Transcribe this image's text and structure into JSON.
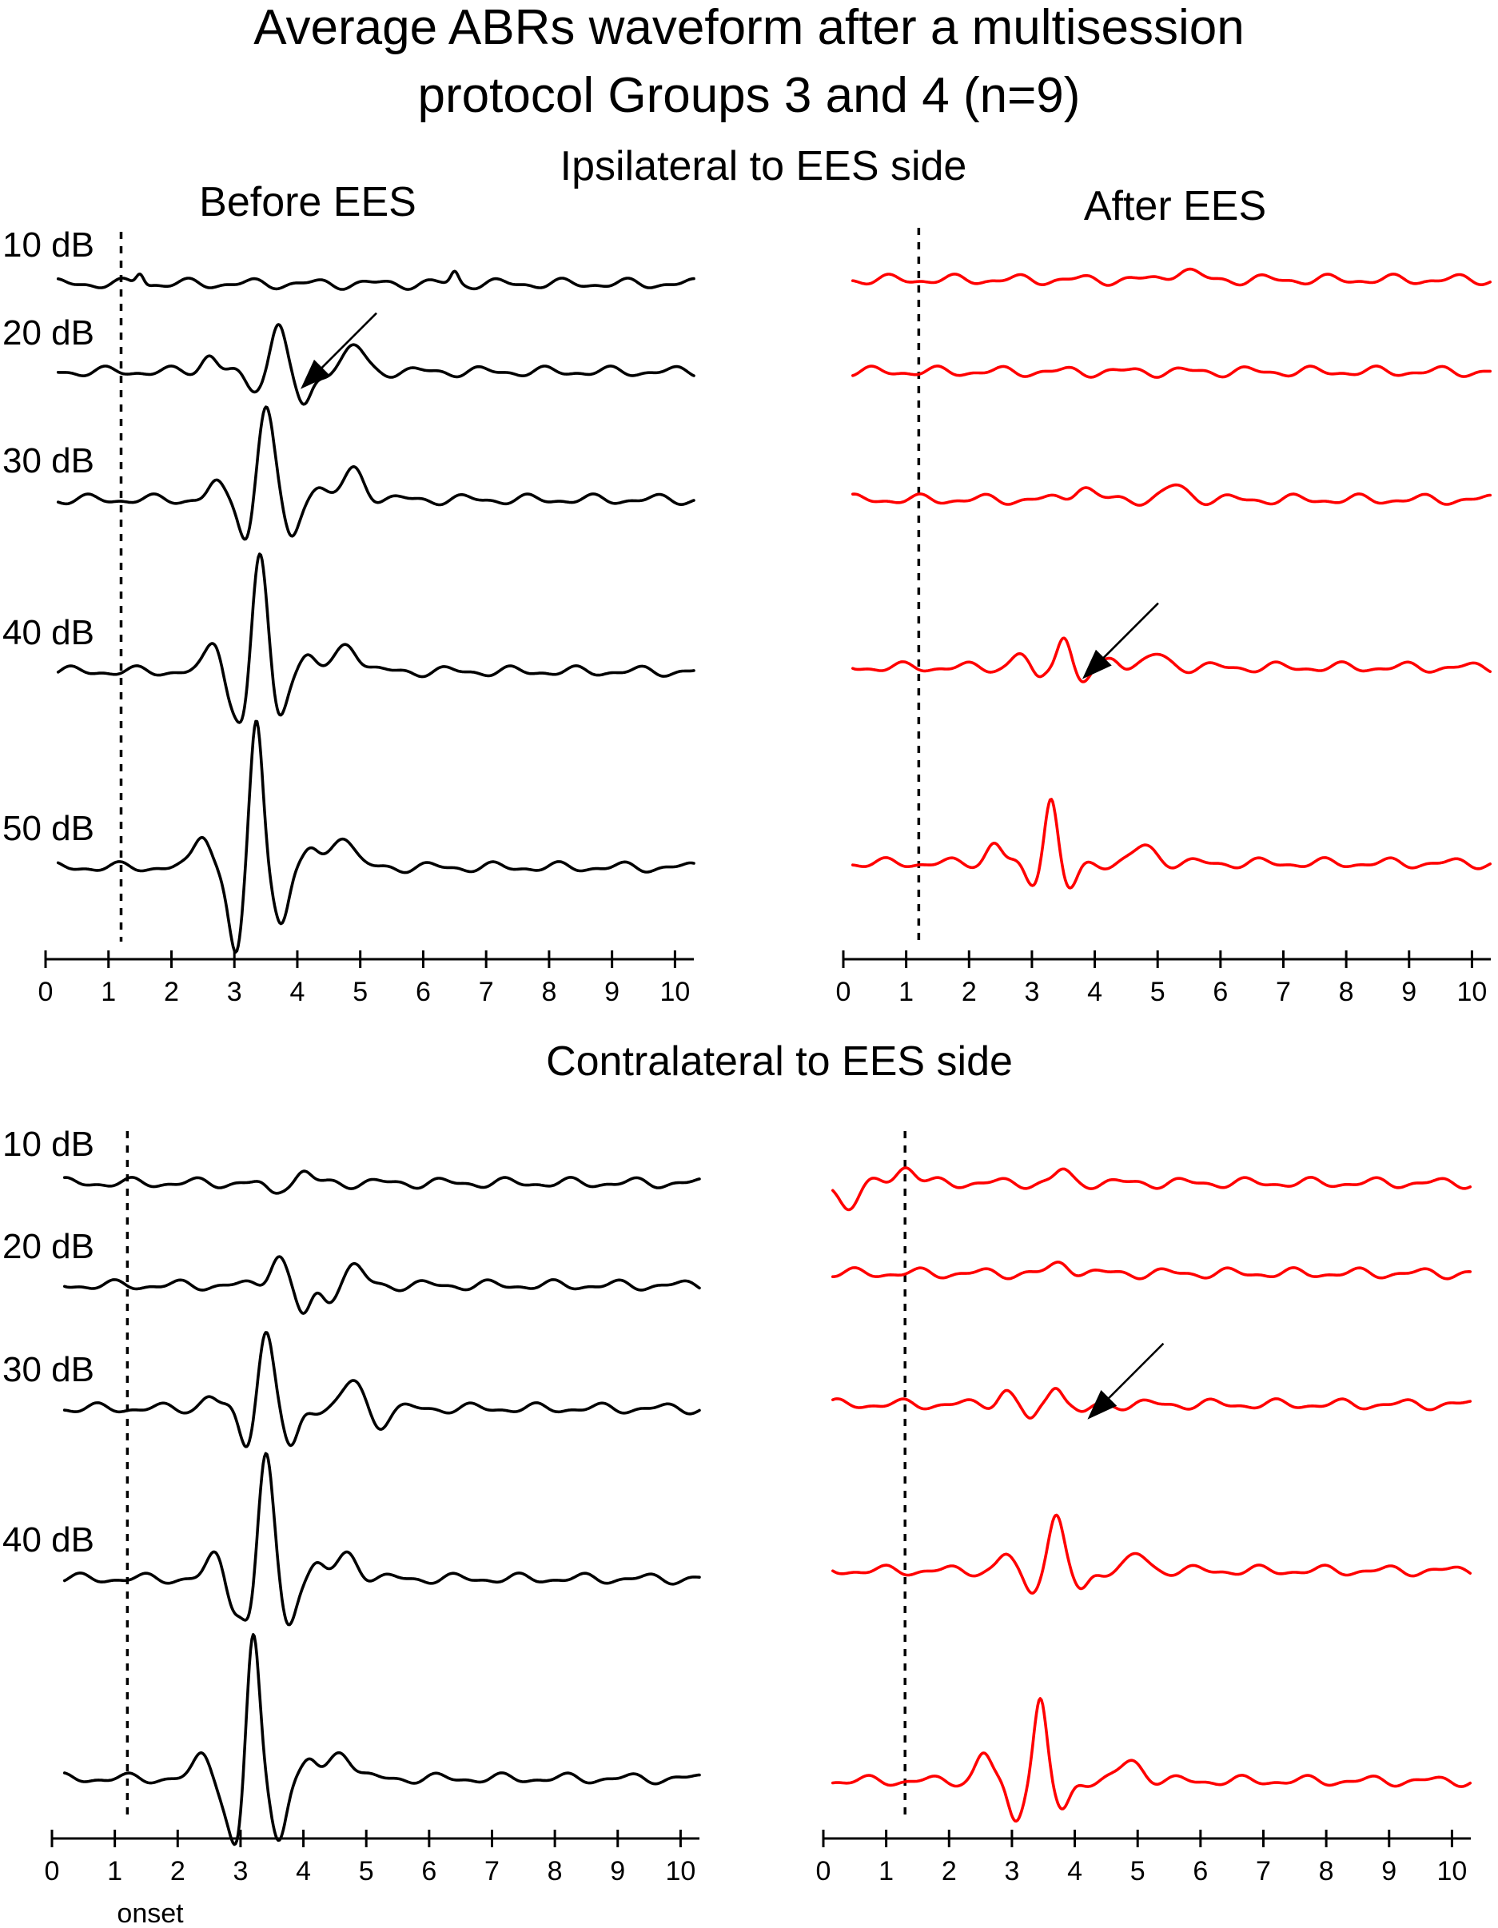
{
  "title_lines": [
    "Average ABRs waveform after a multisession",
    "protocol Groups 3 and 4 (n=9)"
  ],
  "colors": {
    "before": "#000000",
    "after": "#ff0000"
  },
  "chart_data": [
    {
      "type": "line",
      "section": "Ipsilateral to EES side",
      "panel": "Before EES",
      "xlim": [
        0,
        10.3
      ],
      "xticks": [
        0,
        1,
        2,
        3,
        4,
        5,
        6,
        7,
        8,
        9,
        10
      ],
      "onset_x": 1.2,
      "color": "#000000",
      "series": [
        {
          "level": "10 dB",
          "components": [
            [
              0.35,
              1.5,
              0.06
            ],
            [
              0.35,
              6.5,
              0.06
            ]
          ]
        },
        {
          "level": "20 dB",
          "components": [
            [
              0.5,
              2.6,
              0.12
            ],
            [
              1.4,
              3.7,
              0.12
            ],
            [
              -1.1,
              4.1,
              0.12
            ],
            [
              0.75,
              4.9,
              0.16
            ],
            [
              -0.5,
              3.3,
              0.14
            ]
          ],
          "arrow_x": 3.95
        },
        {
          "level": "30 dB",
          "components": [
            [
              0.45,
              2.7,
              0.12
            ],
            [
              2.8,
              3.5,
              0.13
            ],
            [
              -1.2,
              3.2,
              0.12
            ],
            [
              -1.2,
              3.9,
              0.12
            ],
            [
              0.4,
              4.3,
              0.13
            ],
            [
              0.9,
              4.9,
              0.16
            ]
          ]
        },
        {
          "level": "40 dB",
          "components": [
            [
              0.9,
              2.7,
              0.14
            ],
            [
              -0.9,
              2.95,
              0.12
            ],
            [
              3.6,
              3.4,
              0.12
            ],
            [
              -1.4,
              3.15,
              0.11
            ],
            [
              -1.4,
              3.7,
              0.12
            ],
            [
              0.45,
              4.15,
              0.13
            ],
            [
              0.85,
              4.8,
              0.17
            ]
          ]
        },
        {
          "level": "50 dB",
          "components": [
            [
              1.0,
              2.5,
              0.13
            ],
            [
              -1.0,
              2.95,
              0.12
            ],
            [
              4.3,
              3.35,
              0.1
            ],
            [
              -1.8,
              3.05,
              0.1
            ],
            [
              -1.6,
              3.75,
              0.12
            ],
            [
              0.5,
              4.2,
              0.12
            ],
            [
              1.0,
              4.7,
              0.17
            ]
          ]
        }
      ]
    },
    {
      "type": "line",
      "section": "Ipsilateral to EES side",
      "panel": "After EES",
      "xlim": [
        0,
        10.3
      ],
      "xticks": [
        0,
        1,
        2,
        3,
        4,
        5,
        6,
        7,
        8,
        9,
        10
      ],
      "onset_x": 1.2,
      "color": "#ff0000",
      "series": [
        {
          "level": "10 dB",
          "components": [
            [
              0.3,
              5.4,
              0.18
            ]
          ]
        },
        {
          "level": "20 dB",
          "components": []
        },
        {
          "level": "30 dB",
          "components": [
            [
              0.4,
              3.8,
              0.15
            ],
            [
              0.4,
              5.3,
              0.17
            ]
          ]
        },
        {
          "level": "40 dB",
          "components": [
            [
              0.4,
              2.8,
              0.12
            ],
            [
              -0.4,
              3.1,
              0.1
            ],
            [
              1.0,
              3.5,
              0.11
            ],
            [
              -0.5,
              3.8,
              0.12
            ],
            [
              0.3,
              4.3,
              0.13
            ],
            [
              0.35,
              5.0,
              0.17
            ]
          ],
          "arrow_x": 3.7
        },
        {
          "level": "50 dB",
          "components": [
            [
              0.6,
              2.4,
              0.12
            ],
            [
              -0.6,
              3.0,
              0.12
            ],
            [
              2.0,
              3.3,
              0.1
            ],
            [
              -0.8,
              3.6,
              0.12
            ],
            [
              0.5,
              4.8,
              0.17
            ]
          ]
        }
      ]
    },
    {
      "type": "line",
      "section": "Contralateral to EES side",
      "panel": "Before EES",
      "xlim": [
        0,
        10.3
      ],
      "xticks": [
        0,
        1,
        2,
        3,
        4,
        5,
        6,
        7,
        8,
        9,
        10
      ],
      "onset_x": 1.2,
      "onset_label": "onset",
      "color": "#000000",
      "series": [
        {
          "level": "10 dB",
          "components": [
            [
              0.3,
              4.0,
              0.12
            ],
            [
              -0.3,
              3.5,
              0.12
            ]
          ]
        },
        {
          "level": "20 dB",
          "components": [
            [
              0.9,
              3.6,
              0.13
            ],
            [
              -0.9,
              4.0,
              0.12
            ],
            [
              0.55,
              4.8,
              0.15
            ],
            [
              -0.4,
              4.4,
              0.12
            ]
          ]
        },
        {
          "level": "30 dB",
          "components": [
            [
              0.35,
              2.5,
              0.12
            ],
            [
              2.3,
              3.4,
              0.12
            ],
            [
              -1.1,
              3.1,
              0.12
            ],
            [
              -1.2,
              3.8,
              0.12
            ],
            [
              0.8,
              4.8,
              0.16
            ],
            [
              -0.5,
              5.2,
              0.14
            ]
          ]
        },
        {
          "level": "40 dB",
          "components": [
            [
              0.7,
              2.6,
              0.13
            ],
            [
              -0.8,
              2.9,
              0.12
            ],
            [
              3.8,
              3.4,
              0.12
            ],
            [
              -1.3,
              3.15,
              0.11
            ],
            [
              -1.4,
              3.75,
              0.12
            ],
            [
              0.4,
              4.2,
              0.12
            ],
            [
              0.75,
              4.7,
              0.16
            ]
          ]
        },
        {
          "level": "",
          "components": [
            [
              0.7,
              2.4,
              0.13
            ],
            [
              -0.9,
              2.8,
              0.12
            ],
            [
              4.3,
              3.2,
              0.1
            ],
            [
              -1.6,
              2.95,
              0.1
            ],
            [
              -1.7,
              3.6,
              0.12
            ],
            [
              0.5,
              4.1,
              0.12
            ],
            [
              0.85,
              4.6,
              0.17
            ]
          ]
        }
      ]
    },
    {
      "type": "line",
      "section": "Contralateral to EES side",
      "panel": "After EES",
      "xlim": [
        0,
        10.3
      ],
      "xticks": [
        0,
        1,
        2,
        3,
        4,
        5,
        6,
        7,
        8,
        9,
        10
      ],
      "onset_x": 1.3,
      "color": "#ff0000",
      "series": [
        {
          "level": "",
          "components": [
            [
              -0.7,
              0.4,
              0.15
            ],
            [
              0.5,
              1.3,
              0.15
            ],
            [
              0.35,
              3.8,
              0.12
            ]
          ]
        },
        {
          "level": "",
          "components": [
            [
              0.3,
              3.8,
              0.15
            ]
          ]
        },
        {
          "level": "",
          "components": [
            [
              0.4,
              2.9,
              0.12
            ],
            [
              -0.5,
              3.3,
              0.11
            ],
            [
              0.65,
              3.7,
              0.11
            ],
            [
              -0.3,
              4.1,
              0.12
            ]
          ],
          "arrow_x": 4.1
        },
        {
          "level": "",
          "components": [
            [
              0.45,
              2.9,
              0.12
            ],
            [
              -0.6,
              3.3,
              0.12
            ],
            [
              1.6,
              3.7,
              0.12
            ],
            [
              -0.6,
              4.1,
              0.12
            ],
            [
              0.45,
              5.0,
              0.16
            ]
          ]
        },
        {
          "level": "",
          "components": [
            [
              0.8,
              2.55,
              0.12
            ],
            [
              -1.1,
              3.05,
              0.12
            ],
            [
              2.4,
              3.45,
              0.1
            ],
            [
              -0.9,
              3.8,
              0.12
            ],
            [
              0.6,
              4.9,
              0.17
            ]
          ]
        }
      ]
    }
  ]
}
